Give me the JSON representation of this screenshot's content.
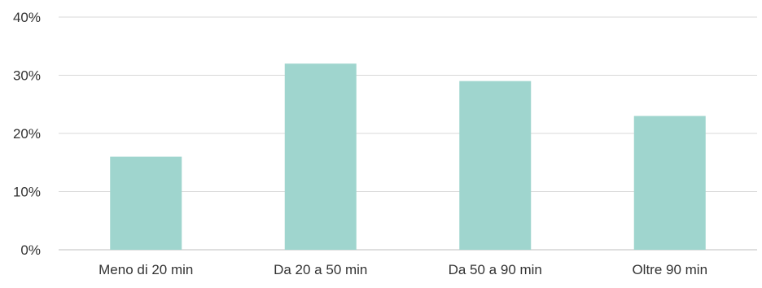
{
  "chart_data": {
    "type": "bar",
    "title": "",
    "xlabel": "",
    "ylabel": "",
    "categories": [
      "Meno di 20 min",
      "Da 20 a 50 min",
      "Da 50 a 90 min",
      "Oltre 90 min"
    ],
    "values": [
      16,
      32,
      29,
      23
    ],
    "value_unit": "%",
    "ylim": [
      0,
      40
    ],
    "yticks": [
      0,
      10,
      20,
      30,
      40
    ],
    "ytick_labels": [
      "0%",
      "10%",
      "20%",
      "30%",
      "40%"
    ],
    "grid": true,
    "legend": "none",
    "bar_color": "#9fd5ce",
    "grid_color": "#d9d9d9"
  }
}
